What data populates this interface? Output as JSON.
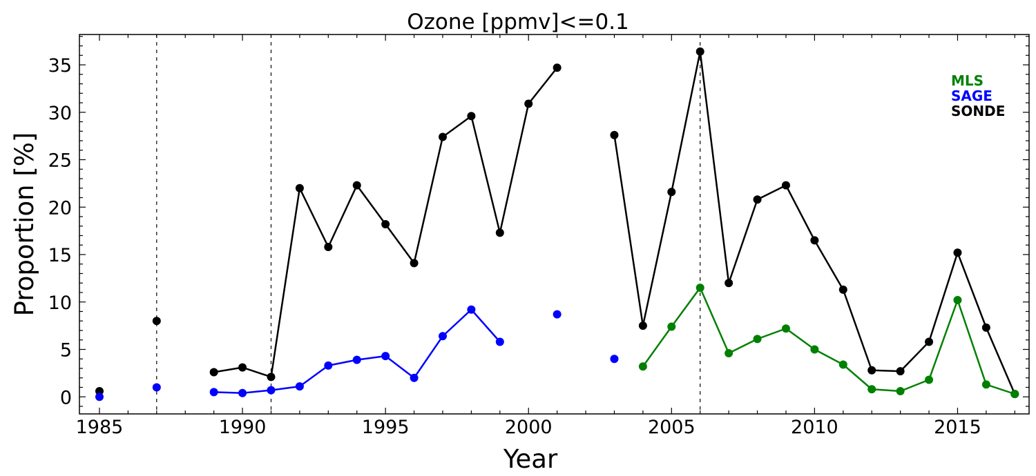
{
  "chart_data": {
    "type": "line",
    "title": "Ozone [ppmv]<=0.1",
    "xlabel": "Year",
    "ylabel": "Proportion [%]",
    "xlim": [
      1984.3,
      2017.5
    ],
    "ylim": [
      -1.8,
      38.2
    ],
    "xticks": [
      1985,
      1990,
      1995,
      2000,
      2005,
      2010,
      2015
    ],
    "yticks": [
      0,
      5,
      10,
      15,
      20,
      25,
      30,
      35
    ],
    "vlines": [
      1987,
      1991,
      2006
    ],
    "legend_position": "top-right",
    "grid": false,
    "series": [
      {
        "name": "MLS",
        "color": "#008000",
        "points": [
          [
            2004,
            3.2
          ],
          [
            2005,
            7.4
          ],
          [
            2006,
            11.5
          ],
          [
            2007,
            4.6
          ],
          [
            2008,
            6.1
          ],
          [
            2009,
            7.2
          ],
          [
            2010,
            5.0
          ],
          [
            2011,
            3.4
          ],
          [
            2012,
            0.8
          ],
          [
            2013,
            0.6
          ],
          [
            2014,
            1.8
          ],
          [
            2015,
            10.2
          ],
          [
            2016,
            1.3
          ],
          [
            2017,
            0.3
          ]
        ]
      },
      {
        "name": "SAGE",
        "color": "#0000ff",
        "points": [
          [
            1985,
            0.0
          ],
          [
            1987,
            1.0
          ],
          [
            1989,
            0.5
          ],
          [
            1990,
            0.4
          ],
          [
            1991,
            0.7
          ],
          [
            1992,
            1.1
          ],
          [
            1993,
            3.3
          ],
          [
            1994,
            3.9
          ],
          [
            1995,
            4.3
          ],
          [
            1996,
            2.0
          ],
          [
            1997,
            6.4
          ],
          [
            1998,
            9.2
          ],
          [
            1999,
            5.8
          ],
          [
            2001,
            8.7
          ],
          [
            2003,
            4.0
          ]
        ]
      },
      {
        "name": "SONDE",
        "color": "#000000",
        "points": [
          [
            1985,
            0.6
          ],
          [
            1987,
            8.0
          ],
          [
            1989,
            2.6
          ],
          [
            1990,
            3.1
          ],
          [
            1991,
            2.1
          ],
          [
            1992,
            22.0
          ],
          [
            1993,
            15.8
          ],
          [
            1994,
            22.3
          ],
          [
            1995,
            18.2
          ],
          [
            1996,
            14.1
          ],
          [
            1997,
            27.4
          ],
          [
            1998,
            29.6
          ],
          [
            1999,
            17.3
          ],
          [
            2000,
            30.9
          ],
          [
            2001,
            34.7
          ],
          [
            2003,
            27.6
          ],
          [
            2004,
            7.5
          ],
          [
            2005,
            21.6
          ],
          [
            2006,
            36.4
          ],
          [
            2007,
            12.0
          ],
          [
            2008,
            20.8
          ],
          [
            2009,
            22.3
          ],
          [
            2010,
            16.5
          ],
          [
            2011,
            11.3
          ],
          [
            2012,
            2.8
          ],
          [
            2013,
            2.7
          ],
          [
            2014,
            5.8
          ],
          [
            2015,
            15.2
          ],
          [
            2016,
            7.3
          ],
          [
            2017,
            0.3
          ]
        ]
      }
    ]
  }
}
